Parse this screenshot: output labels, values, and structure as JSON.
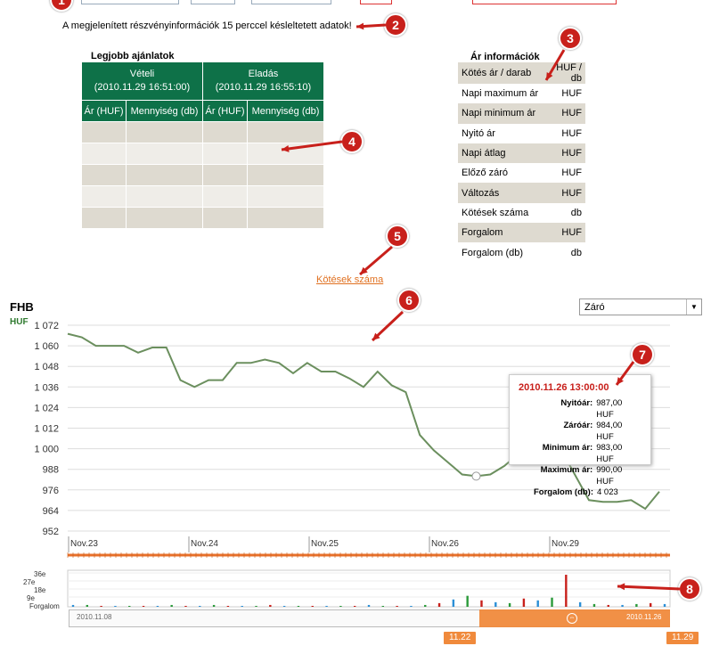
{
  "notice": "A megjelenített részvényinformációk 15 perccel késleltetett adatok!",
  "callouts": [
    "1",
    "2",
    "3",
    "4",
    "5",
    "6",
    "7",
    "8"
  ],
  "best_offers": {
    "title": "Legjobb ajánlatok",
    "buy_header": "Vételi",
    "buy_time": "(2010.11.29 16:51:00)",
    "sell_header": "Eladás",
    "sell_time": "(2010.11.29 16:55:10)",
    "col_price": "Ár (HUF)",
    "col_qty": "Mennyiség (db)"
  },
  "price_info": {
    "title": "Ár információk",
    "rows": [
      {
        "label": "Kötés ár / darab",
        "unit": "HUF / db"
      },
      {
        "label": "Napi maximum ár",
        "unit": "HUF"
      },
      {
        "label": "Napi minimum ár",
        "unit": "HUF"
      },
      {
        "label": "Nyitó ár",
        "unit": "HUF"
      },
      {
        "label": "Napi átlag",
        "unit": "HUF"
      },
      {
        "label": "Előző záró",
        "unit": "HUF"
      },
      {
        "label": "Változás",
        "unit": "HUF"
      },
      {
        "label": "Kötések száma",
        "unit": "db"
      },
      {
        "label": "Forgalom",
        "unit": "HUF"
      },
      {
        "label": "Forgalom (db)",
        "unit": "db"
      }
    ]
  },
  "trades_link": "Kötések száma",
  "ticker": "FHB",
  "currency": "HUF",
  "select_value": "Záró",
  "tooltip": {
    "date": "2010.11.26 13:00:00",
    "rows": [
      {
        "k": "Nyitóár:",
        "v": "987,00 HUF"
      },
      {
        "k": "Záróár:",
        "v": "984,00 HUF"
      },
      {
        "k": "Minimum ár:",
        "v": "983,00 HUF"
      },
      {
        "k": "Maximum ár:",
        "v": "990,00 HUF"
      },
      {
        "k": "Forgalom (db):",
        "v": "4 023"
      }
    ]
  },
  "volume": {
    "labels": [
      "36e",
      "27e",
      "18e",
      "9e",
      "Forgalom"
    ]
  },
  "navigator": {
    "start_date": "2010.11.08",
    "end_date": "2010.11.26",
    "handle_left": "11.22",
    "handle_right": "11.29"
  },
  "colors": {
    "green": "#0e7148",
    "line": "#6b8f5e",
    "orange": "#e8702a",
    "red": "#c8201b"
  },
  "chart_data": {
    "type": "line",
    "y_ticks": [
      "1 072",
      "1 060",
      "1 048",
      "1 036",
      "1 024",
      "1 012",
      "1 000",
      "988",
      "976",
      "964",
      "952"
    ],
    "x_ticks": [
      "Nov.23",
      "Nov.24",
      "Nov.25",
      "Nov.26",
      "Nov.29"
    ],
    "ylim": [
      952,
      1072
    ],
    "series": [
      {
        "values": [
          1067,
          1065,
          1060,
          1060,
          1060,
          1056,
          1059,
          1059,
          1040,
          1036,
          1040,
          1040,
          1050,
          1050,
          1052,
          1050,
          1044,
          1050,
          1045,
          1045,
          1041,
          1036,
          1045,
          1037,
          1033,
          1008,
          999,
          992,
          985,
          984,
          985,
          990,
          997,
          1003,
          1010,
          1000,
          985,
          970,
          969,
          969,
          970,
          965,
          975
        ]
      }
    ],
    "volume_series": {
      "values": [
        2,
        2,
        1,
        1,
        1,
        1,
        1,
        2,
        1,
        1,
        2,
        1,
        1,
        1,
        2,
        1,
        1,
        1,
        1,
        1,
        1,
        2,
        1,
        1,
        1,
        2,
        4,
        8,
        12,
        7,
        5,
        4,
        9,
        7,
        10,
        35,
        5,
        3,
        2,
        2,
        3,
        4,
        3
      ]
    }
  }
}
